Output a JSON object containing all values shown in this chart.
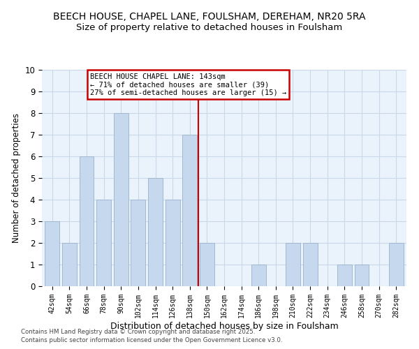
{
  "title": "BEECH HOUSE, CHAPEL LANE, FOULSHAM, DEREHAM, NR20 5RA",
  "subtitle": "Size of property relative to detached houses in Foulsham",
  "xlabel": "Distribution of detached houses by size in Foulsham",
  "ylabel": "Number of detached properties",
  "bar_labels": [
    "42sqm",
    "54sqm",
    "66sqm",
    "78sqm",
    "90sqm",
    "102sqm",
    "114sqm",
    "126sqm",
    "138sqm",
    "150sqm",
    "162sqm",
    "174sqm",
    "186sqm",
    "198sqm",
    "210sqm",
    "222sqm",
    "234sqm",
    "246sqm",
    "258sqm",
    "270sqm",
    "282sqm"
  ],
  "bar_values": [
    3,
    2,
    6,
    4,
    8,
    4,
    5,
    4,
    7,
    2,
    0,
    0,
    1,
    0,
    2,
    2,
    0,
    1,
    1,
    0,
    2
  ],
  "bar_color": "#c5d8ed",
  "bar_edge_color": "#a0b8d0",
  "vline_x": 8.5,
  "vline_color": "#cc0000",
  "ylim": [
    0,
    10
  ],
  "yticks": [
    0,
    1,
    2,
    3,
    4,
    5,
    6,
    7,
    8,
    9,
    10
  ],
  "annotation_title": "BEECH HOUSE CHAPEL LANE: 143sqm",
  "annotation_line1": "← 71% of detached houses are smaller (39)",
  "annotation_line2": "27% of semi-detached houses are larger (15) →",
  "annotation_box_color": "#ffffff",
  "annotation_box_edge": "#cc0000",
  "footer1": "Contains HM Land Registry data © Crown copyright and database right 2025.",
  "footer2": "Contains public sector information licensed under the Open Government Licence v3.0.",
  "grid_color": "#c8d8e8",
  "bg_color": "#eaf2fb",
  "fig_bg_color": "#ffffff",
  "title_fontsize": 10,
  "subtitle_fontsize": 9.5
}
